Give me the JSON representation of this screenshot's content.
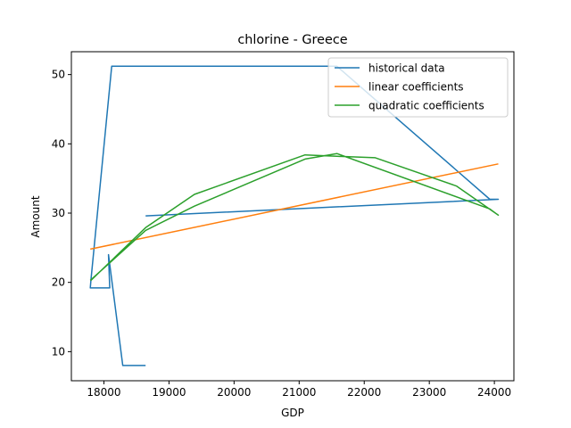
{
  "chart_data": {
    "type": "line",
    "title": "chlorine - Greece",
    "xlabel": "GDP",
    "ylabel": "Amount",
    "xlim": [
      17500,
      24300
    ],
    "ylim": [
      5.8,
      53.3
    ],
    "xticks": [
      18000,
      19000,
      20000,
      21000,
      22000,
      23000,
      24000
    ],
    "yticks": [
      10,
      20,
      30,
      40,
      50
    ],
    "legend_position": "top-right",
    "grid": false,
    "series": [
      {
        "name": "historical data",
        "color": "#1f77b4",
        "x": [
          18640,
          18290,
          18070,
          18090,
          18070,
          17790,
          17800,
          18120,
          21580,
          23930,
          24060,
          18640
        ],
        "y": [
          8.0,
          8.0,
          24.0,
          19.2,
          19.2,
          19.2,
          20.3,
          51.2,
          51.2,
          32.0,
          32.0,
          29.6
        ]
      },
      {
        "name": "linear coefficients",
        "color": "#ff7f0e",
        "x": [
          17790,
          24060
        ],
        "y": [
          24.8,
          37.1
        ]
      },
      {
        "name": "quadratic coefficients",
        "color": "#2ca02c",
        "x": [
          17800,
          18640,
          19390,
          21090,
          21580,
          22170,
          23420,
          24060,
          23930,
          21580,
          21090,
          19390,
          18640,
          17790
        ],
        "y": [
          20.3,
          27.9,
          32.7,
          38.4,
          38.2,
          38.0,
          33.9,
          29.7,
          30.6,
          38.6,
          37.8,
          31.0,
          27.5,
          20.3
        ]
      }
    ]
  }
}
